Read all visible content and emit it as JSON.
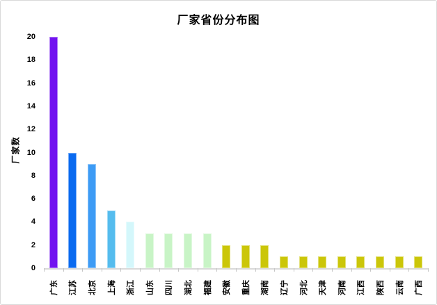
{
  "chart": {
    "title": "厂家省份分布图",
    "ylabel": "厂家数"
  },
  "chart_data": {
    "type": "bar",
    "title": "厂家省份分布图",
    "xlabel": "",
    "ylabel": "厂家数",
    "ylim": [
      0,
      20
    ],
    "ytick_step": 2,
    "ytick_labels": [
      "0",
      "2",
      "4",
      "6",
      "8",
      "10",
      "12",
      "14",
      "16",
      "18",
      "20"
    ],
    "grid": false,
    "legend": "none",
    "categories": [
      "广东",
      "江苏",
      "北京",
      "上海",
      "浙江",
      "山东",
      "四川",
      "湖北",
      "福建",
      "安徽",
      "重庆",
      "湖南",
      "辽宁",
      "河北",
      "天津",
      "河南",
      "江西",
      "陕西",
      "云南",
      "广西"
    ],
    "values": [
      20,
      10,
      9,
      5,
      4,
      3,
      3,
      3,
      3,
      2,
      2,
      2,
      1,
      1,
      1,
      1,
      1,
      1,
      1,
      1
    ],
    "bar_colors": [
      "#7213F0",
      "#0A6AF0",
      "#3D9BF5",
      "#55BCEE",
      "#D4F7FB",
      "#C8F4C6",
      "#C8F4C6",
      "#C8F4C6",
      "#C8F4C6",
      "#CBC609",
      "#CBC609",
      "#CBC609",
      "#CBC609",
      "#CBC609",
      "#CBC609",
      "#CBC609",
      "#CBC609",
      "#CBC609",
      "#CBC609",
      "#CBC609"
    ]
  },
  "colors": {
    "background": "#ffffff",
    "canvas_border": "#d9d9d9",
    "axis_line": "#d9d9d9",
    "tick_mark": "#c6c6c6",
    "text": "#000000"
  }
}
